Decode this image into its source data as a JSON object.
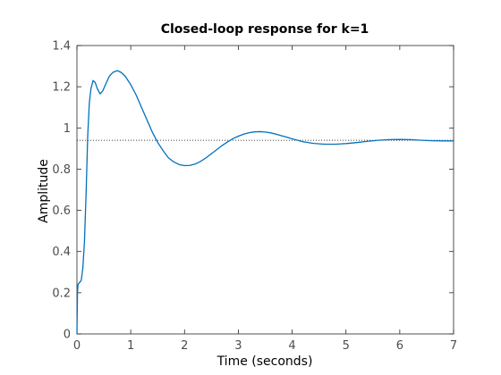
{
  "chart_data": {
    "type": "line",
    "title": "Closed-loop response for k=1",
    "xlabel": "Time (seconds)",
    "ylabel": "Amplitude",
    "xlim": [
      0,
      7
    ],
    "ylim": [
      0,
      1.4
    ],
    "x_ticks": [
      0,
      1,
      2,
      3,
      4,
      5,
      6,
      7
    ],
    "y_ticks": [
      0,
      0.2,
      0.4,
      0.6,
      0.8,
      1,
      1.2,
      1.4
    ],
    "grid": false,
    "series": [
      {
        "color": "#0072bd",
        "points": [
          [
            0.0,
            0.0
          ],
          [
            0.01,
            0.2
          ],
          [
            0.02,
            0.24
          ],
          [
            0.05,
            0.25
          ],
          [
            0.08,
            0.26
          ],
          [
            0.11,
            0.32
          ],
          [
            0.14,
            0.45
          ],
          [
            0.17,
            0.68
          ],
          [
            0.2,
            0.96
          ],
          [
            0.23,
            1.12
          ],
          [
            0.26,
            1.19
          ],
          [
            0.3,
            1.23
          ],
          [
            0.34,
            1.22
          ],
          [
            0.38,
            1.19
          ],
          [
            0.43,
            1.165
          ],
          [
            0.48,
            1.18
          ],
          [
            0.53,
            1.21
          ],
          [
            0.6,
            1.25
          ],
          [
            0.67,
            1.27
          ],
          [
            0.75,
            1.278
          ],
          [
            0.82,
            1.27
          ],
          [
            0.9,
            1.25
          ],
          [
            1.0,
            1.21
          ],
          [
            1.1,
            1.16
          ],
          [
            1.2,
            1.1
          ],
          [
            1.3,
            1.04
          ],
          [
            1.4,
            0.98
          ],
          [
            1.5,
            0.93
          ],
          [
            1.6,
            0.89
          ],
          [
            1.7,
            0.855
          ],
          [
            1.8,
            0.835
          ],
          [
            1.9,
            0.822
          ],
          [
            2.0,
            0.817
          ],
          [
            2.1,
            0.818
          ],
          [
            2.2,
            0.825
          ],
          [
            2.3,
            0.838
          ],
          [
            2.4,
            0.855
          ],
          [
            2.5,
            0.875
          ],
          [
            2.6,
            0.895
          ],
          [
            2.7,
            0.915
          ],
          [
            2.8,
            0.932
          ],
          [
            2.9,
            0.948
          ],
          [
            3.0,
            0.96
          ],
          [
            3.1,
            0.97
          ],
          [
            3.2,
            0.977
          ],
          [
            3.3,
            0.981
          ],
          [
            3.4,
            0.982
          ],
          [
            3.5,
            0.98
          ],
          [
            3.6,
            0.976
          ],
          [
            3.7,
            0.97
          ],
          [
            3.8,
            0.962
          ],
          [
            3.9,
            0.955
          ],
          [
            4.0,
            0.947
          ],
          [
            4.2,
            0.933
          ],
          [
            4.4,
            0.925
          ],
          [
            4.6,
            0.921
          ],
          [
            4.8,
            0.921
          ],
          [
            5.0,
            0.924
          ],
          [
            5.2,
            0.929
          ],
          [
            5.4,
            0.935
          ],
          [
            5.6,
            0.94
          ],
          [
            5.8,
            0.943
          ],
          [
            6.0,
            0.944
          ],
          [
            6.2,
            0.943
          ],
          [
            6.4,
            0.94
          ],
          [
            6.6,
            0.938
          ],
          [
            6.8,
            0.937
          ],
          [
            7.0,
            0.937
          ]
        ]
      }
    ],
    "reference_line": {
      "y": 0.94,
      "style": "dotted",
      "color": "#000000"
    }
  }
}
